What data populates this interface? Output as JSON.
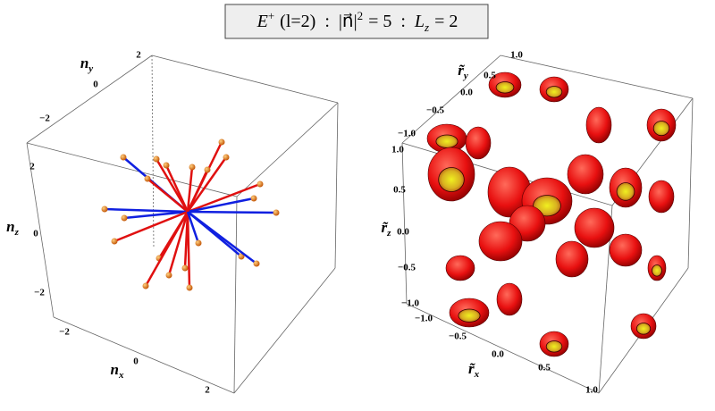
{
  "title": {
    "e": "E",
    "sup": "+",
    "l": "(l=2)",
    "sep1": ":",
    "n": "|n⃗|",
    "pow": "2",
    "eq1": "= 5",
    "sep2": ":",
    "L": "L",
    "sub": "z",
    "eq2": "= 2"
  },
  "left_plot": {
    "y_axis": {
      "symbol": "n",
      "sub": "y",
      "ticks": [
        "2",
        "0",
        "−2"
      ]
    },
    "z_axis": {
      "symbol": "n",
      "sub": "z",
      "ticks": [
        "2",
        "0",
        "−2"
      ]
    },
    "x_axis": {
      "symbol": "n",
      "sub": "x",
      "ticks": [
        "−2",
        "0",
        "2"
      ]
    }
  },
  "right_plot": {
    "y_axis": {
      "symbol": "r̃",
      "sub": "y",
      "ticks": [
        "1.0",
        "0.5",
        "0.0",
        "−0.5",
        "−1.0"
      ]
    },
    "z_axis": {
      "symbol": "r̃",
      "sub": "z",
      "ticks": [
        "1.0",
        "0.5",
        "0.0",
        "−0.5",
        "−1.0"
      ]
    },
    "x_axis": {
      "symbol": "r̃",
      "sub": "x",
      "ticks": [
        "−1.0",
        "−0.5",
        "0.0",
        "0.5",
        "1.0"
      ]
    }
  }
}
